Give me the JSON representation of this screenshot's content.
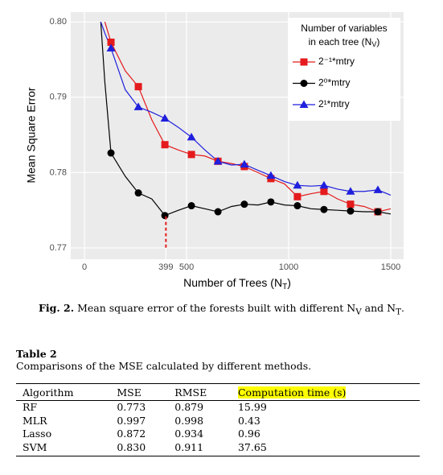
{
  "chart_data": {
    "type": "line",
    "y_label": "Mean Square Error",
    "x_label": {
      "text": "Number of Trees (N",
      "sub": "T",
      "end": ")"
    },
    "legend_title": {
      "line1": "Number of variables",
      "line2": "in each tree (N",
      "sub": "V",
      "end": ")"
    },
    "xlim": [
      -67,
      1563
    ],
    "xticks": [
      0,
      399,
      500,
      1000,
      1500
    ],
    "ylim": [
      0.7685,
      0.8013
    ],
    "yticks": [
      {
        "value": 0.8,
        "label": "0.80"
      },
      0.79,
      0.78,
      0.77
    ],
    "grid": true,
    "x": [
      80,
      100,
      130,
      200,
      264,
      330,
      394,
      460,
      524,
      590,
      654,
      720,
      783,
      850,
      913,
      980,
      1043,
      1110,
      1173,
      1240,
      1303,
      1370,
      1437,
      1500
    ],
    "series": [
      {
        "name": "2⁻¹*mtry",
        "color": "#e41a1c",
        "marker": "square",
        "values": [
          null,
          0.8,
          0.7973,
          0.7935,
          0.7914,
          0.787,
          0.7837,
          0.783,
          0.7824,
          0.7822,
          0.7815,
          0.7812,
          0.7808,
          0.78,
          0.7792,
          0.7785,
          0.7768,
          0.7772,
          0.7775,
          0.7765,
          0.7758,
          0.7755,
          0.7748,
          0.7752
        ]
      },
      {
        "name": "2⁰*mtry",
        "color": "#000000",
        "marker": "circle",
        "values": [
          0.8,
          0.792,
          0.7826,
          0.7795,
          0.7773,
          0.7765,
          0.7743,
          0.775,
          0.7756,
          0.7752,
          0.7748,
          0.7755,
          0.7758,
          0.7757,
          0.7761,
          0.7757,
          0.7756,
          0.7752,
          0.7751,
          0.775,
          0.7749,
          0.7748,
          0.7748,
          0.7745
        ]
      },
      {
        "name": "2¹*mtry",
        "color": "#1f1fdd",
        "marker": "triangle",
        "values": [
          0.8,
          0.7985,
          0.7965,
          0.791,
          0.7887,
          0.788,
          0.7872,
          0.786,
          0.7847,
          0.783,
          0.7815,
          0.781,
          0.7811,
          0.7803,
          0.7796,
          0.7788,
          0.7783,
          0.7782,
          0.7783,
          0.7778,
          0.7775,
          0.7775,
          0.7777,
          0.777
        ]
      }
    ],
    "vline": {
      "x": 399,
      "y": [
        0.7742,
        0.77
      ],
      "color": "#e41a1c"
    }
  },
  "caption": {
    "label": "Fig. 2.",
    "text": " Mean square error of the forests built with different N",
    "sub1": "V",
    "mid": " and N",
    "sub2": "T",
    "end": "."
  },
  "table": {
    "title": "Table 2",
    "subtitle": "Comparisons of the MSE calculated by different methods.",
    "headers": [
      "Algorithm",
      "MSE",
      "RMSE",
      "Computation time (s)"
    ],
    "rows": [
      [
        "RF",
        "0.773",
        "0.879",
        "15.99"
      ],
      [
        "MLR",
        "0.997",
        "0.998",
        "0.43"
      ],
      [
        "Lasso",
        "0.872",
        "0.934",
        "0.96"
      ],
      [
        "SVM",
        "0.830",
        "0.911",
        "37.65"
      ]
    ]
  }
}
